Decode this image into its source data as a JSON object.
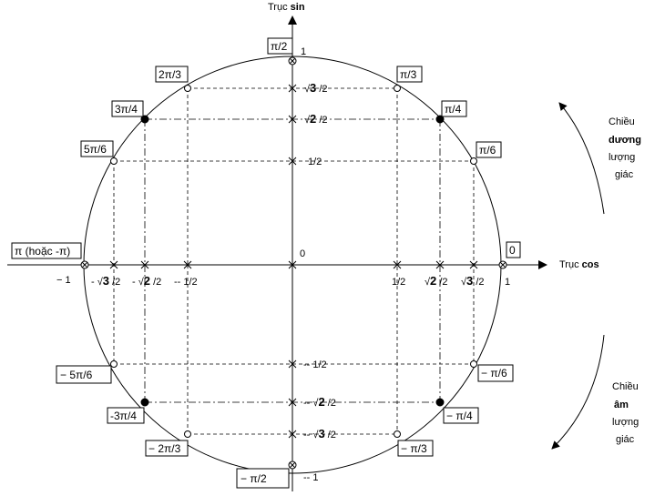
{
  "axes": {
    "sin_axis_prefix": "Trục ",
    "sin_axis_bold": "sin",
    "cos_axis_prefix": "Trục ",
    "cos_axis_bold": "cos",
    "origin": "0"
  },
  "angles": {
    "zero": "0",
    "pi_over_6": "π/6",
    "pi_over_4": "π/4",
    "pi_over_3": "π/3",
    "pi_over_2": "π/2",
    "two_pi_over_3": "2π/3",
    "three_pi_over_4": "3π/4",
    "five_pi_over_6": "5π/6",
    "pi": "π (hoặc -π)",
    "neg_five_pi_over_6": "− 5π/6",
    "neg_three_pi_over_4": "-3π/4",
    "neg_two_pi_over_3": "− 2π/3",
    "neg_pi_over_2": "− π/2",
    "neg_pi_over_3": "− π/3",
    "neg_pi_over_4": "− π/4",
    "neg_pi_over_6": "− π/6"
  },
  "values": {
    "sin_one": "1",
    "sin_sqrt3_over_2_root": "√",
    "sin_sqrt3_over_2_num": "3",
    "sin_sqrt3_over_2_den": " /2",
    "sin_sqrt2_over_2_root": "√",
    "sin_sqrt2_over_2_num": "2",
    "sin_sqrt2_over_2_den": " /2",
    "sin_half": "1/2",
    "sin_neg_half": "-- 1/2",
    "sin_neg_sqrt2_prefix": "-- ",
    "sin_neg_sqrt3_prefix": "-- ",
    "sin_neg_one": "-- 1",
    "cos_one": "1",
    "cos_neg_one": "− 1",
    "cos_half": "1/2",
    "cos_neg_half": "-- 1/2",
    "cos_neg_sqrt3_prefix": "- ",
    "cos_neg_sqrt2_prefix": "- ",
    "root": "√",
    "three": "3",
    "two": "2",
    "over2": " /2"
  },
  "notes": {
    "positive_line1": "Chiều",
    "positive_line2": "dương",
    "positive_line3": "lượng",
    "positive_line4": "giác",
    "negative_line1": "Chiều",
    "negative_line2": "âm",
    "negative_line3": "lượng",
    "negative_line4": "giác"
  }
}
